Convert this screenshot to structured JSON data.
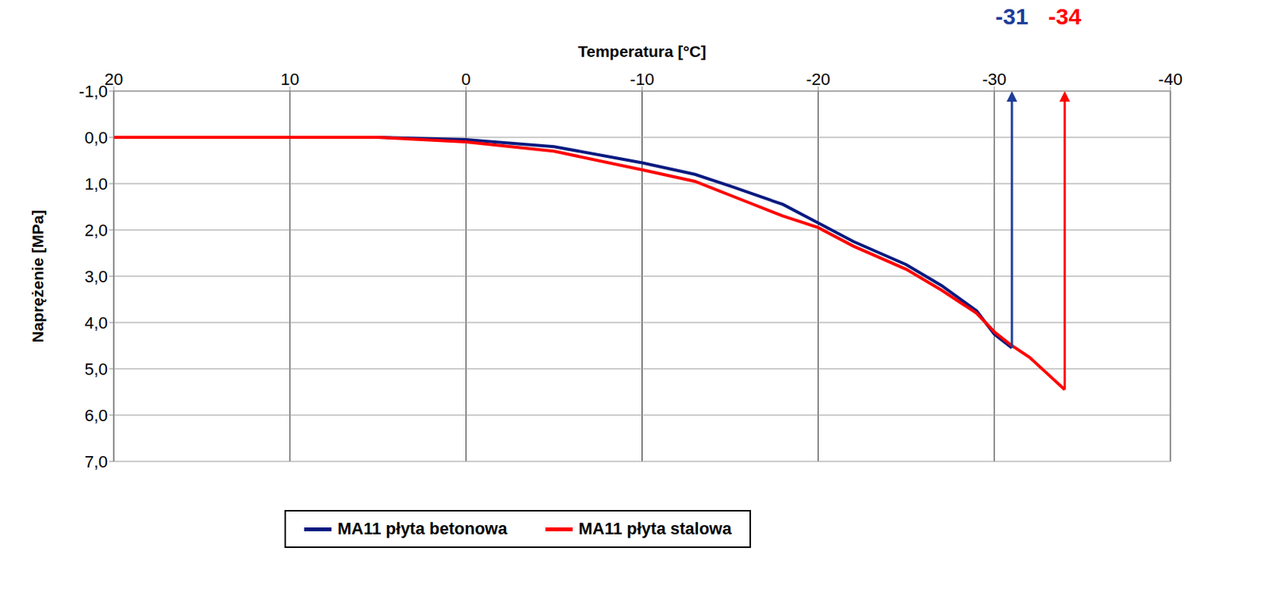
{
  "chart_data": {
    "type": "line",
    "x_label": "Temperatura [°C]",
    "y_label": "Naprężenie [MPa]",
    "x": [
      20,
      10,
      5,
      0,
      -5,
      -10,
      -13,
      -15,
      -18,
      -20,
      -22,
      -25,
      -27,
      -29,
      -30,
      -31,
      -32,
      -33,
      -34
    ],
    "series": [
      {
        "name": "MA11 płyta betonowa",
        "color": "#0a1a80",
        "values": [
          0,
          0,
          0,
          0.05,
          0.2,
          0.55,
          0.8,
          1.05,
          1.45,
          1.85,
          2.25,
          2.75,
          3.2,
          3.75,
          4.25,
          4.55,
          null,
          null,
          null
        ]
      },
      {
        "name": "MA11 płyta stalowa",
        "color": "#ff0000",
        "values": [
          0,
          0,
          0,
          0.1,
          0.3,
          0.7,
          0.95,
          1.25,
          1.7,
          1.95,
          2.35,
          2.85,
          3.3,
          3.8,
          4.2,
          4.5,
          4.75,
          5.1,
          5.45
        ]
      }
    ],
    "xlim": [
      20,
      -40
    ],
    "xticks": [
      20,
      10,
      0,
      -10,
      -20,
      -30,
      -40
    ],
    "ylim": [
      7,
      -1
    ],
    "yticks": [
      {
        "value": -1,
        "label": "-1,0"
      },
      {
        "value": 0,
        "label": "0,0"
      },
      {
        "value": 1,
        "label": "1,0"
      },
      {
        "value": 2,
        "label": "2,0"
      },
      {
        "value": 3,
        "label": "3,0"
      },
      {
        "value": 4,
        "label": "4,0"
      },
      {
        "value": 5,
        "label": "5,0"
      },
      {
        "value": 6,
        "label": "6,0"
      },
      {
        "value": 7,
        "label": "7,0"
      }
    ],
    "annotations": [
      {
        "text": "-31",
        "x": -31,
        "y": 4.55,
        "color": "#1f3d99"
      },
      {
        "text": "-34",
        "x": -34,
        "y": 5.45,
        "color": "#ff0000"
      }
    ],
    "grid": true,
    "legend": "bottom"
  }
}
